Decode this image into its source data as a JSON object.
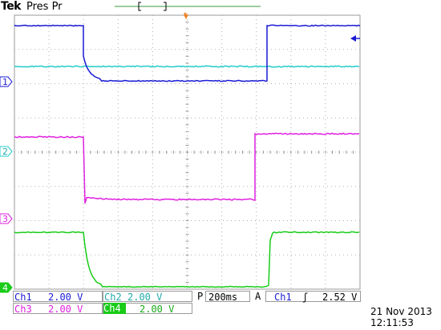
{
  "header": {
    "brand": "Tek",
    "status": "Pres Pr"
  },
  "colors": {
    "ch1": "#1a1ad6",
    "ch2": "#22cccc",
    "ch3": "#e020e0",
    "ch4": "#18cc18",
    "grid": "#9a9a9a",
    "trigger": "#f08020",
    "record": "#3a9a3a"
  },
  "channels": [
    {
      "label": "1",
      "scale_name": "Ch1",
      "scale": "2.00 V"
    },
    {
      "label": "2",
      "scale_name": "Ch2",
      "scale": "2.00 V"
    },
    {
      "label": "3",
      "scale_name": "Ch3",
      "scale": "2.00 V"
    },
    {
      "label": "4",
      "scale_name": "Ch4",
      "scale": "2.00 V"
    }
  ],
  "timebase": {
    "mode": "P",
    "value": "200ms"
  },
  "trigger": {
    "label": "A",
    "source": "Ch1",
    "slope": "rising-edge-icon",
    "slope_glyph": "ʃ",
    "level": "2.52 V"
  },
  "footer": {
    "date": "21 Nov 2013",
    "time": "12:11:53"
  }
}
